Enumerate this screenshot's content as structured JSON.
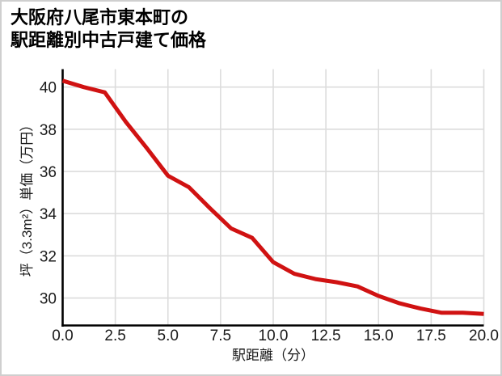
{
  "figure": {
    "title_line1": "大阪府八尾市東本町の",
    "title_line2": "駅距離別中古戸建て価格"
  },
  "chart_data": {
    "type": "line",
    "title": "大阪府八尾市東本町の駅距離別中古戸建て価格",
    "xlabel": "駅距離（分）",
    "ylabel": "坪（3.3m²）単価（万円）",
    "x": [
      0,
      1,
      2,
      3,
      4,
      5,
      6,
      7,
      8,
      9,
      10,
      11,
      12,
      13,
      14,
      15,
      16,
      17,
      18,
      19,
      20
    ],
    "y": [
      40.3,
      40.0,
      39.75,
      38.35,
      37.1,
      35.8,
      35.25,
      34.25,
      33.3,
      32.85,
      31.7,
      31.15,
      30.9,
      30.75,
      30.55,
      30.1,
      29.75,
      29.5,
      29.3,
      29.3,
      29.25
    ],
    "xlim": [
      0,
      20
    ],
    "ylim": [
      28.7,
      40.85
    ],
    "xticks": {
      "values": [
        0,
        2.5,
        5,
        7.5,
        10,
        12.5,
        15,
        17.5,
        20
      ],
      "labels": [
        "0.0",
        "2.5",
        "5.0",
        "7.5",
        "10.0",
        "12.5",
        "15.0",
        "17.5",
        "20.0"
      ]
    },
    "yticks": {
      "values": [
        30,
        32,
        34,
        36,
        38,
        40
      ],
      "labels": [
        "30",
        "32",
        "34",
        "36",
        "38",
        "40"
      ]
    },
    "grid": true,
    "legend": "none",
    "line_color": "#d01212"
  },
  "colors": {
    "background": "#ffffff",
    "grid": "#dcdcdc",
    "spine": "#000000",
    "tick_text": "#1a1a1a",
    "border": "#cfcfcf"
  }
}
